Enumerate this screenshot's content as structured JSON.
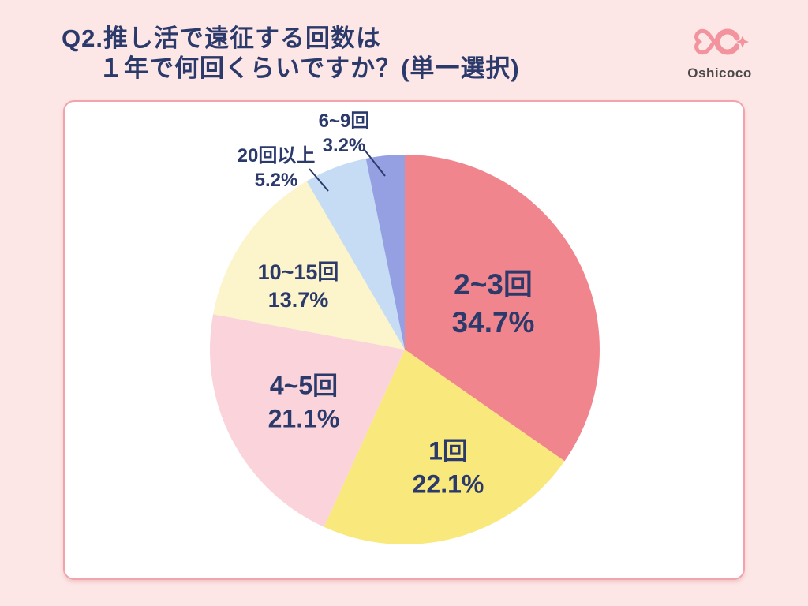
{
  "header": {
    "title_line1": "Q2.推し活で遠征する回数は",
    "title_line2": "１年で何回くらいですか？(単一選択)",
    "logo_text": "Oshicoco"
  },
  "chart_data": {
    "type": "pie",
    "title": "Q2.推し活で遠征する回数は１年で何回くらいですか？(単一選択)",
    "unit": "%",
    "start_angle_deg": 0,
    "direction": "clockwise",
    "legend_position": "none",
    "slices": [
      {
        "label": "2~3回",
        "value": 34.7,
        "pct": "34.7%",
        "color": "#F1858E",
        "label_position": "inside"
      },
      {
        "label": "1回",
        "value": 22.1,
        "pct": "22.1%",
        "color": "#F9E87B",
        "label_position": "inside"
      },
      {
        "label": "4~5回",
        "value": 21.1,
        "pct": "21.1%",
        "color": "#FAD4DA",
        "label_position": "inside"
      },
      {
        "label": "10~15回",
        "value": 13.7,
        "pct": "13.7%",
        "color": "#FCF4CA",
        "label_position": "inside"
      },
      {
        "label": "20回以上",
        "value": 5.2,
        "pct": "5.2%",
        "color": "#C5DCF4",
        "label_position": "outside"
      },
      {
        "label": "6~9回",
        "value": 3.2,
        "pct": "3.2%",
        "color": "#95A0E3",
        "label_position": "outside"
      }
    ]
  },
  "theme": {
    "bg": "#fce7e6",
    "card_bg": "#ffffff",
    "card_border": "#f2a3ab",
    "navy": "#2b3a6b",
    "logo_pink": "#f2939e",
    "logo_text": "#4a4a4a"
  }
}
